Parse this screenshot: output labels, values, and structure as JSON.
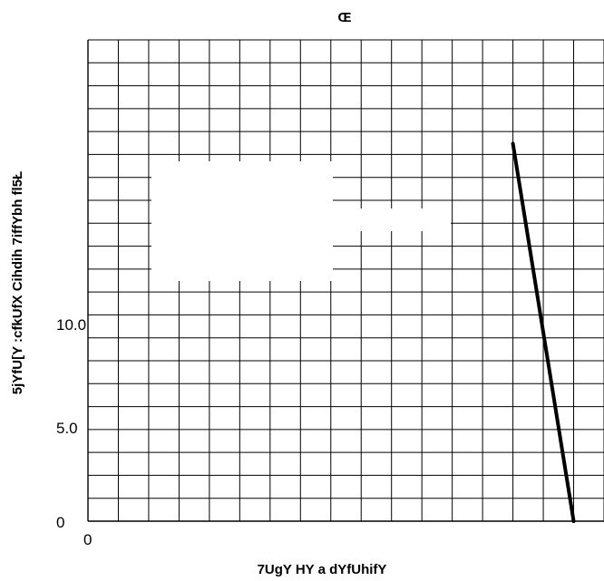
{
  "chart_data": {
    "type": "line",
    "title": "Œ",
    "xlabel": "7UgY HY a dYfUhifY",
    "ylabel": "5jYfU[Y :cfkUfX Cihdih 7iffYbh fl5Ł",
    "y_ticks": [
      "0",
      "5.0",
      "10.0"
    ],
    "x_ticks": [
      "0"
    ],
    "ylim": [
      0,
      25.5
    ],
    "grid": true,
    "grid_columns": 17,
    "grid_rows": 21,
    "series": [
      {
        "values": [
          [
            14,
            20
          ],
          [
            16,
            0
          ]
        ]
      }
    ],
    "colors": {
      "grid": "#000000",
      "line": "#000000",
      "background": "#ffffff"
    }
  }
}
